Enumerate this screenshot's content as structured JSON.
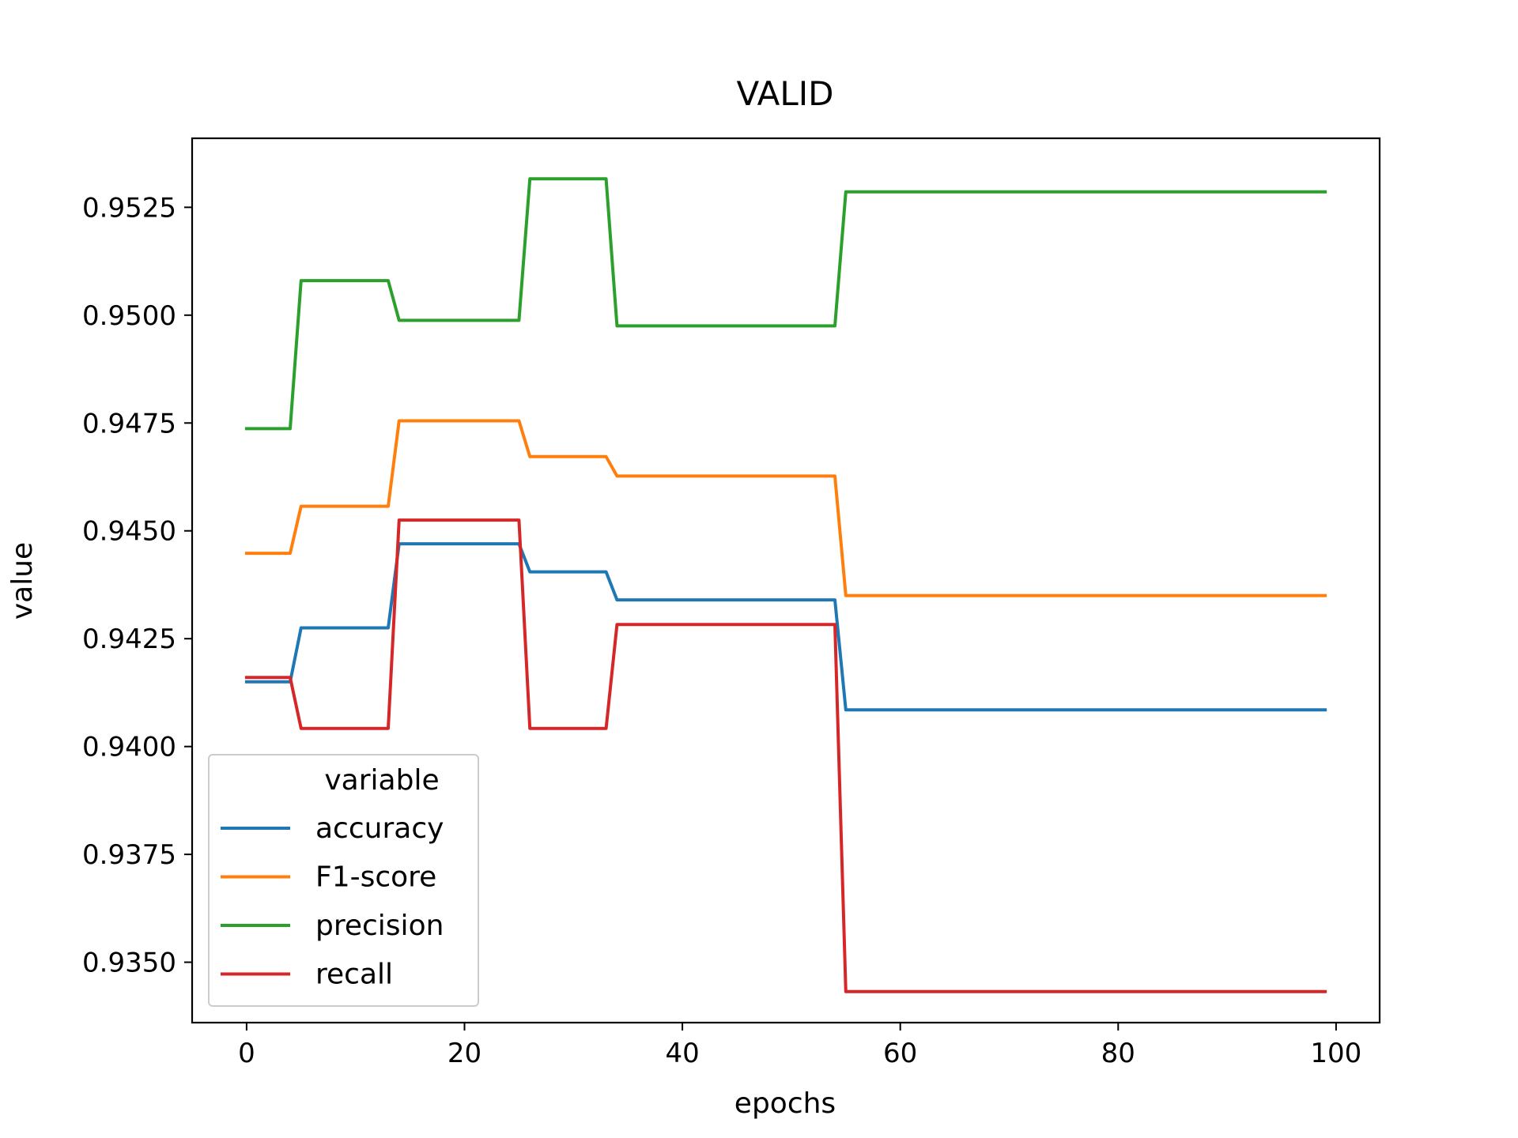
{
  "chart_data": {
    "type": "line",
    "title": "VALID",
    "xlabel": "epochs",
    "ylabel": "value",
    "xlim": [
      -5,
      104
    ],
    "ylim": [
      0.9336,
      0.9541
    ],
    "xticks": [
      0,
      20,
      40,
      60,
      80,
      100
    ],
    "xtick_labels": [
      "0",
      "20",
      "40",
      "60",
      "80",
      "100"
    ],
    "yticks": [
      0.935,
      0.9375,
      0.94,
      0.9425,
      0.945,
      0.9475,
      0.95,
      0.9525
    ],
    "ytick_labels": [
      "0.9350",
      "0.9375",
      "0.9400",
      "0.9425",
      "0.9450",
      "0.9475",
      "0.9500",
      "0.9525"
    ],
    "grid": false,
    "legend": {
      "title": "variable",
      "placement": "lower-left"
    },
    "series": [
      {
        "name": "accuracy",
        "color": "#1f77b4",
        "points": [
          [
            0,
            0.9415
          ],
          [
            4,
            0.9415
          ],
          [
            5,
            0.94275
          ],
          [
            13,
            0.94275
          ],
          [
            14,
            0.9447
          ],
          [
            25,
            0.9447
          ],
          [
            26,
            0.94405
          ],
          [
            33,
            0.94405
          ],
          [
            34,
            0.9434
          ],
          [
            54,
            0.9434
          ],
          [
            55,
            0.94085
          ],
          [
            99,
            0.94085
          ]
        ]
      },
      {
        "name": "F1-score",
        "color": "#ff7f0e",
        "points": [
          [
            0,
            0.94448
          ],
          [
            4,
            0.94448
          ],
          [
            5,
            0.94557
          ],
          [
            13,
            0.94557
          ],
          [
            14,
            0.94755
          ],
          [
            25,
            0.94755
          ],
          [
            26,
            0.94672
          ],
          [
            33,
            0.94672
          ],
          [
            34,
            0.94627
          ],
          [
            54,
            0.94627
          ],
          [
            55,
            0.9435
          ],
          [
            99,
            0.9435
          ]
        ]
      },
      {
        "name": "precision",
        "color": "#2ca02c",
        "points": [
          [
            0,
            0.94737
          ],
          [
            4,
            0.94737
          ],
          [
            5,
            0.9508
          ],
          [
            13,
            0.9508
          ],
          [
            14,
            0.94988
          ],
          [
            25,
            0.94988
          ],
          [
            26,
            0.95316
          ],
          [
            33,
            0.95316
          ],
          [
            34,
            0.94975
          ],
          [
            54,
            0.94975
          ],
          [
            55,
            0.95286
          ],
          [
            99,
            0.95286
          ]
        ]
      },
      {
        "name": "recall",
        "color": "#d62728",
        "points": [
          [
            0,
            0.9416
          ],
          [
            4,
            0.9416
          ],
          [
            5,
            0.94042
          ],
          [
            13,
            0.94042
          ],
          [
            14,
            0.94525
          ],
          [
            25,
            0.94525
          ],
          [
            26,
            0.94042
          ],
          [
            33,
            0.94042
          ],
          [
            34,
            0.94283
          ],
          [
            54,
            0.94283
          ],
          [
            55,
            0.93432
          ],
          [
            99,
            0.93432
          ]
        ]
      }
    ]
  }
}
